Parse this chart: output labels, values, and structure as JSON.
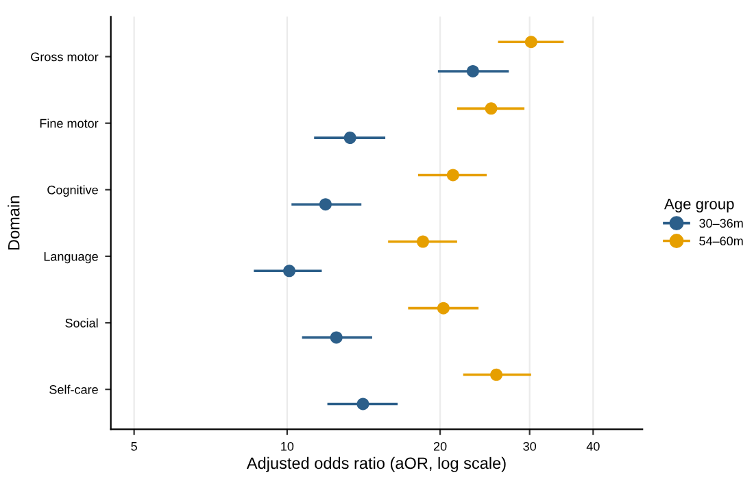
{
  "chart_data": {
    "type": "scatter",
    "orientation": "horizontal",
    "xlabel": "Adjusted odds ratio (aOR, log scale)",
    "ylabel": "Domain",
    "legend_title": "Age group",
    "categories": [
      "Gross motor",
      "Fine motor",
      "Cognitive",
      "Language",
      "Social",
      "Self-care"
    ],
    "series": [
      {
        "name": "30–36m",
        "color": "#2c5f8a",
        "values": [
          23.2,
          13.3,
          11.9,
          10.1,
          12.5,
          14.1
        ],
        "errors": [
          [
            19.8,
            27.3
          ],
          [
            11.3,
            15.6
          ],
          [
            10.2,
            14.0
          ],
          [
            8.6,
            11.7
          ],
          [
            10.7,
            14.7
          ],
          [
            12.0,
            16.5
          ]
        ]
      },
      {
        "name": "54–60m",
        "color": "#e69f00",
        "values": [
          30.2,
          25.2,
          21.2,
          18.5,
          20.3,
          25.8
        ],
        "errors": [
          [
            26.0,
            35.0
          ],
          [
            21.6,
            29.3
          ],
          [
            18.1,
            24.7
          ],
          [
            15.8,
            21.6
          ],
          [
            17.3,
            23.8
          ],
          [
            22.2,
            30.2
          ]
        ]
      }
    ],
    "log": "x",
    "xlim": [
      4.5,
      50
    ],
    "xticks": [
      5,
      10,
      20,
      30,
      40
    ],
    "grid": "x",
    "legend": "right",
    "marker": "circle"
  }
}
